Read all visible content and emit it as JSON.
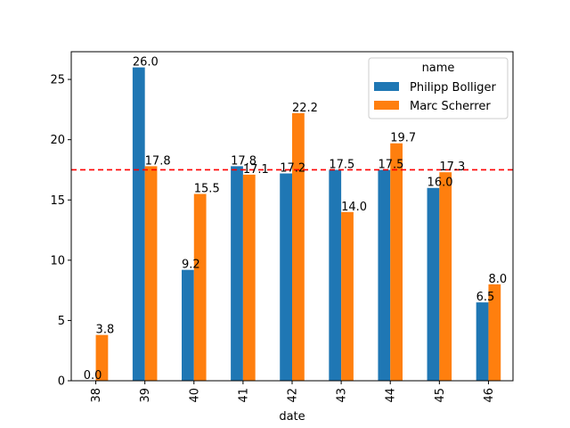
{
  "chart_data": {
    "type": "bar",
    "xlabel": "date",
    "ylabel": "",
    "categories": [
      "38",
      "39",
      "40",
      "41",
      "42",
      "43",
      "44",
      "45",
      "46"
    ],
    "series": [
      {
        "name": "Philipp Bolliger",
        "color": "#1f77b4",
        "values": [
          0.0,
          26.0,
          9.2,
          17.8,
          17.2,
          17.5,
          17.5,
          16.0,
          6.5
        ],
        "labels": [
          "0.0",
          "26.0",
          "9.2",
          "17.8",
          "17.2",
          "17.5",
          "17.5",
          "16.0",
          "6.5"
        ]
      },
      {
        "name": "Marc Scherrer",
        "color": "#ff7f0e",
        "values": [
          3.8,
          17.8,
          15.5,
          17.1,
          22.2,
          14.0,
          19.7,
          17.3,
          8.0
        ],
        "labels": [
          "3.8",
          "17.8",
          "15.5",
          "17.1",
          "22.2",
          "14.0",
          "19.7",
          "17.3",
          "8.0"
        ]
      }
    ],
    "ylim": [
      0,
      27.3
    ],
    "yticks": [
      "0",
      "5",
      "10",
      "15",
      "20",
      "25"
    ],
    "reference_line": {
      "value": 17.5,
      "color": "#ff0000",
      "style": "dashed"
    },
    "legend": {
      "title": "name",
      "placement": "upper-right"
    },
    "grid": false
  }
}
